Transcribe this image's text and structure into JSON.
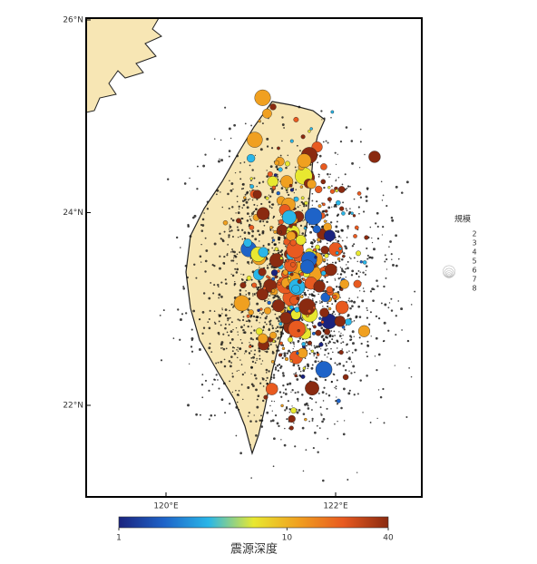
{
  "map": {
    "lat_ticks": [
      {
        "value": 26,
        "label": "26°N"
      },
      {
        "value": 24,
        "label": "24°N"
      },
      {
        "value": 22,
        "label": "22°N"
      }
    ],
    "lon_ticks": [
      {
        "value": 120,
        "label": "120°E"
      },
      {
        "value": 122,
        "label": "122°E"
      }
    ],
    "colorbar": {
      "title": "震源深度",
      "lim": [
        1,
        40
      ],
      "ticks": [
        1,
        10,
        40
      ],
      "scale": "log",
      "colors": [
        "#1a237e",
        "#1e63c8",
        "#29b6e8",
        "#e8e830",
        "#f0a020",
        "#e85a20",
        "#8a2a10"
      ]
    },
    "legend": {
      "title": "規模",
      "magnitudes": [
        2,
        3,
        4,
        5,
        6,
        7,
        8
      ]
    }
  }
}
